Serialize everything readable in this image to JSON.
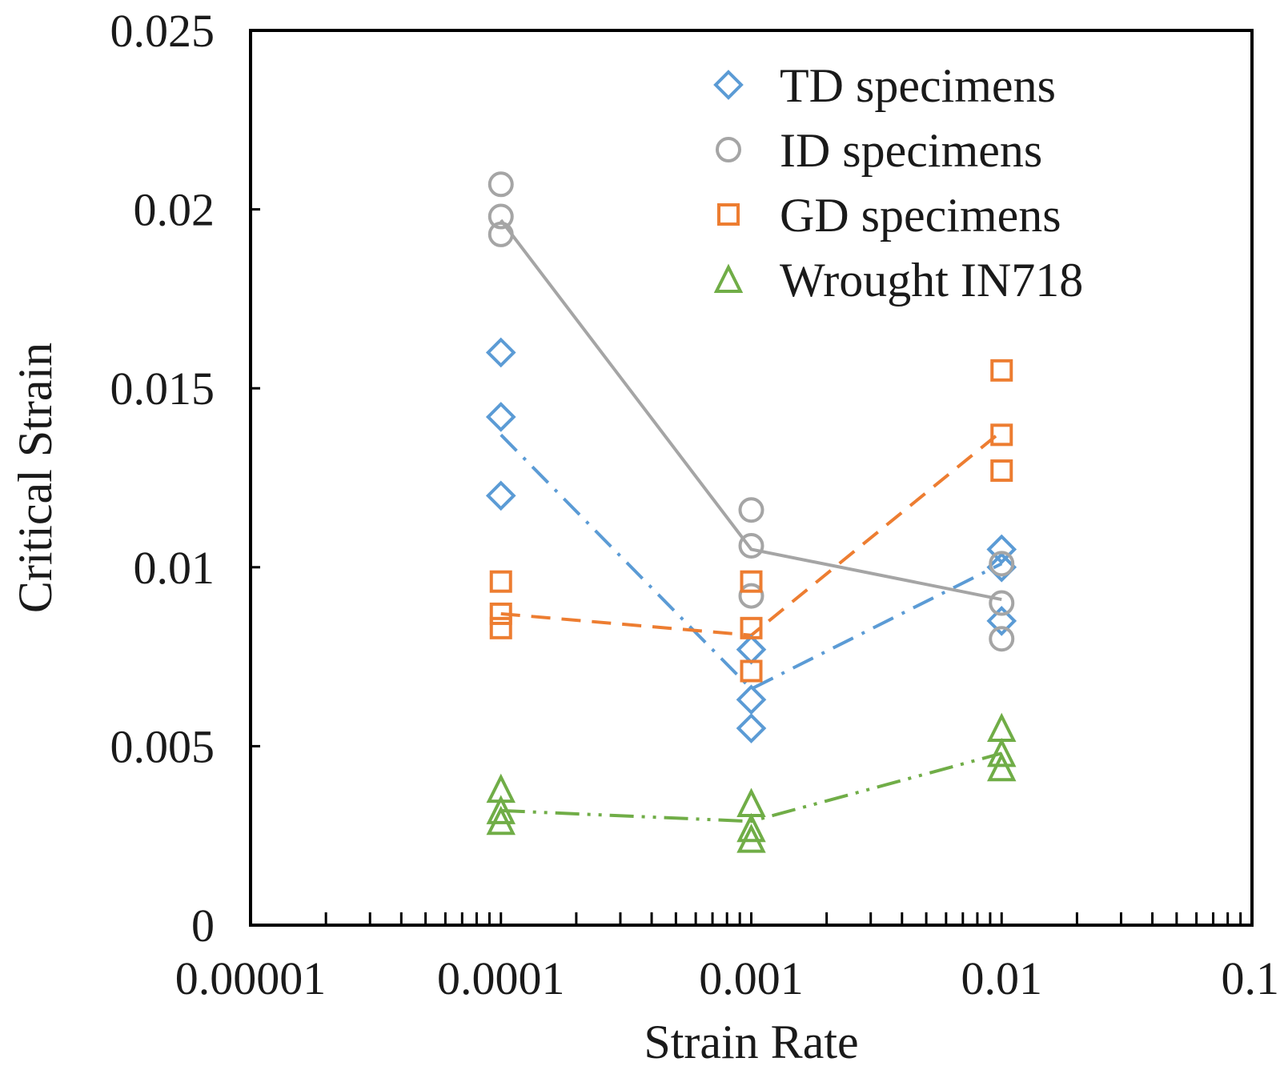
{
  "chart_data": {
    "type": "scatter",
    "title": "",
    "xlabel": "Strain Rate",
    "ylabel": "Critical Strain",
    "xscale": "log",
    "xlim": [
      1e-05,
      0.1
    ],
    "ylim": [
      0,
      0.025
    ],
    "grid": false,
    "legend_position": "top-right",
    "x_ticks": [
      1e-05,
      0.0001,
      0.001,
      0.01,
      0.1
    ],
    "x_tick_labels": [
      "0.00001",
      "0.0001",
      "0.001",
      "0.01",
      "0.1"
    ],
    "y_ticks": [
      0,
      0.005,
      0.01,
      0.015,
      0.02,
      0.025
    ],
    "y_tick_labels": [
      "0",
      "0.005",
      "0.01",
      "0.015",
      "0.02",
      "0.025"
    ],
    "series": [
      {
        "name": "TD specimens",
        "marker": "diamond",
        "color": "#5b9bd5",
        "line_style": "dash-dot",
        "points": [
          {
            "x": 0.0001,
            "y": 0.016
          },
          {
            "x": 0.0001,
            "y": 0.0142
          },
          {
            "x": 0.0001,
            "y": 0.012
          },
          {
            "x": 0.001,
            "y": 0.0077
          },
          {
            "x": 0.001,
            "y": 0.0063
          },
          {
            "x": 0.001,
            "y": 0.0055
          },
          {
            "x": 0.01,
            "y": 0.0105
          },
          {
            "x": 0.01,
            "y": 0.01
          },
          {
            "x": 0.01,
            "y": 0.0085
          }
        ],
        "trend": [
          {
            "x": 0.0001,
            "y": 0.0137
          },
          {
            "x": 0.001,
            "y": 0.0066
          },
          {
            "x": 0.01,
            "y": 0.0101
          }
        ]
      },
      {
        "name": "ID specimens",
        "marker": "circle",
        "color": "#a5a5a5",
        "line_style": "solid",
        "points": [
          {
            "x": 0.0001,
            "y": 0.0207
          },
          {
            "x": 0.0001,
            "y": 0.0198
          },
          {
            "x": 0.0001,
            "y": 0.0193
          },
          {
            "x": 0.001,
            "y": 0.0116
          },
          {
            "x": 0.001,
            "y": 0.0106
          },
          {
            "x": 0.001,
            "y": 0.0092
          },
          {
            "x": 0.01,
            "y": 0.0101
          },
          {
            "x": 0.01,
            "y": 0.009
          },
          {
            "x": 0.01,
            "y": 0.008
          }
        ],
        "trend": [
          {
            "x": 0.0001,
            "y": 0.0197
          },
          {
            "x": 0.001,
            "y": 0.0105
          },
          {
            "x": 0.01,
            "y": 0.0091
          }
        ]
      },
      {
        "name": "GD specimens",
        "marker": "square",
        "color": "#ed7d31",
        "line_style": "dashed",
        "points": [
          {
            "x": 0.0001,
            "y": 0.0096
          },
          {
            "x": 0.0001,
            "y": 0.0087
          },
          {
            "x": 0.0001,
            "y": 0.0083
          },
          {
            "x": 0.001,
            "y": 0.0096
          },
          {
            "x": 0.001,
            "y": 0.0083
          },
          {
            "x": 0.001,
            "y": 0.0071
          },
          {
            "x": 0.01,
            "y": 0.0155
          },
          {
            "x": 0.01,
            "y": 0.0137
          },
          {
            "x": 0.01,
            "y": 0.0127
          }
        ],
        "trend": [
          {
            "x": 0.0001,
            "y": 0.0087
          },
          {
            "x": 0.001,
            "y": 0.0081
          },
          {
            "x": 0.01,
            "y": 0.0138
          }
        ]
      },
      {
        "name": "Wrought IN718",
        "marker": "triangle",
        "color": "#70ad47",
        "line_style": "dash-dot-dot",
        "points": [
          {
            "x": 0.0001,
            "y": 0.0038
          },
          {
            "x": 0.0001,
            "y": 0.0032
          },
          {
            "x": 0.0001,
            "y": 0.0029
          },
          {
            "x": 0.001,
            "y": 0.0034
          },
          {
            "x": 0.001,
            "y": 0.0027
          },
          {
            "x": 0.001,
            "y": 0.0024
          },
          {
            "x": 0.01,
            "y": 0.0055
          },
          {
            "x": 0.01,
            "y": 0.0048
          },
          {
            "x": 0.01,
            "y": 0.0044
          }
        ],
        "trend": [
          {
            "x": 0.0001,
            "y": 0.0032
          },
          {
            "x": 0.001,
            "y": 0.0029
          },
          {
            "x": 0.01,
            "y": 0.0048
          }
        ]
      }
    ]
  }
}
